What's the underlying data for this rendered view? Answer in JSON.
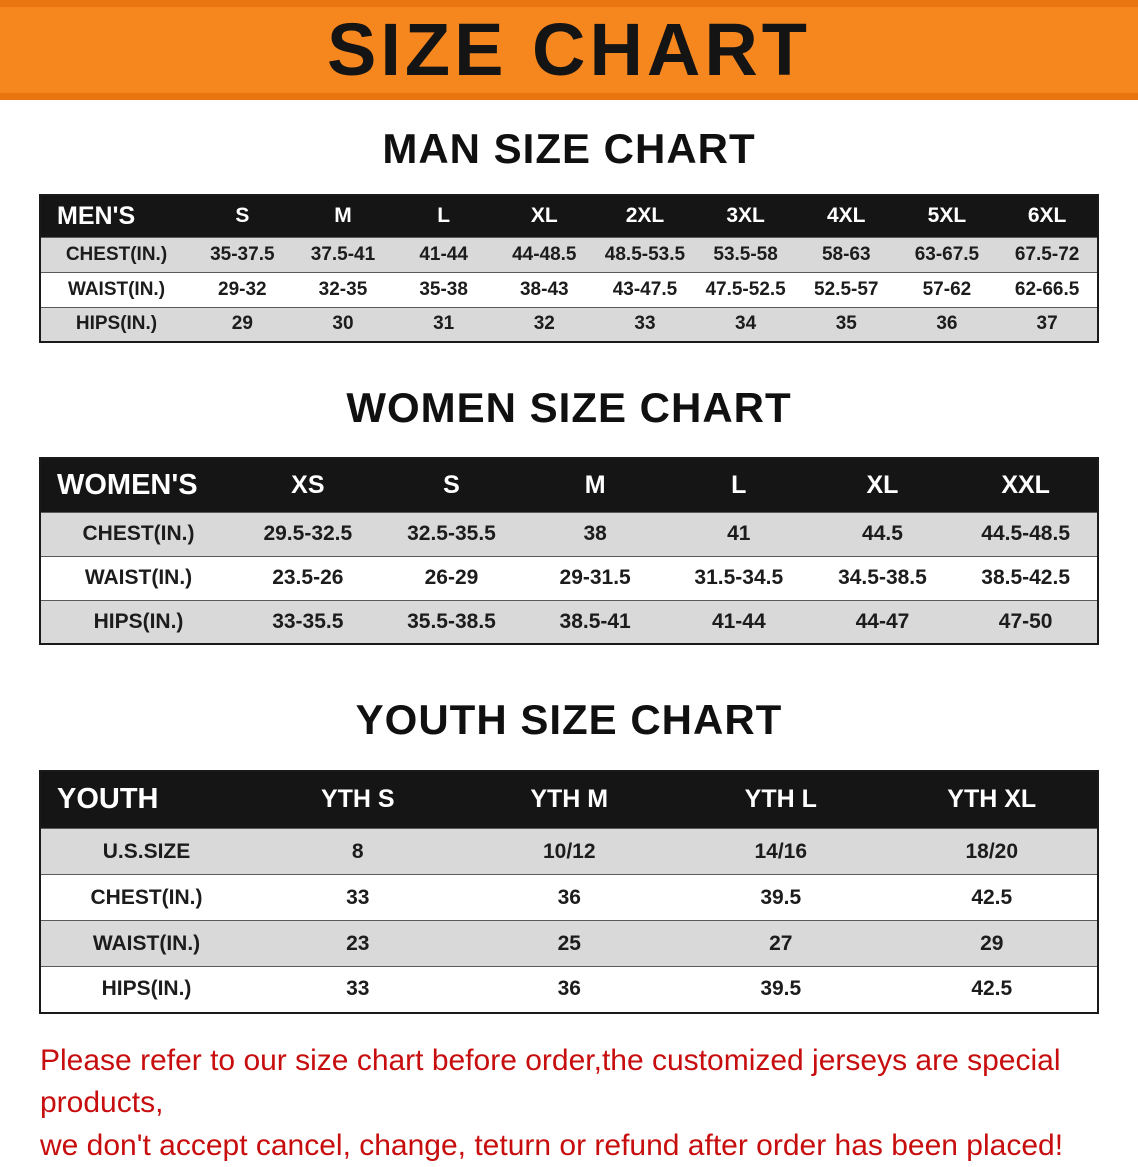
{
  "banner": {
    "title": "SIZE CHART"
  },
  "colors": {
    "banner_bg": "#f6871f",
    "banner_edge": "#e87510",
    "table_header_bg": "#151515",
    "row_stripe": "#d9d9d9",
    "disclaimer_red": "#c70d0d"
  },
  "sections": [
    {
      "id": "men",
      "heading": "MAN SIZE CHART",
      "table": {
        "header": [
          "MEN'S",
          "S",
          "M",
          "L",
          "XL",
          "2XL",
          "3XL",
          "4XL",
          "5XL",
          "6XL"
        ],
        "rows": [
          [
            "CHEST(IN.)",
            "35-37.5",
            "37.5-41",
            "41-44",
            "44-48.5",
            "48.5-53.5",
            "53.5-58",
            "58-63",
            "63-67.5",
            "67.5-72"
          ],
          [
            "WAIST(IN.)",
            "29-32",
            "32-35",
            "35-38",
            "38-43",
            "43-47.5",
            "47.5-52.5",
            "52.5-57",
            "57-62",
            "62-66.5"
          ],
          [
            "HIPS(IN.)",
            "29",
            "30",
            "31",
            "32",
            "33",
            "34",
            "35",
            "36",
            "37"
          ]
        ]
      }
    },
    {
      "id": "women",
      "heading": "WOMEN SIZE CHART",
      "table": {
        "header": [
          "WOMEN'S",
          "XS",
          "S",
          "M",
          "L",
          "XL",
          "XXL"
        ],
        "rows": [
          [
            "CHEST(IN.)",
            "29.5-32.5",
            "32.5-35.5",
            "38",
            "41",
            "44.5",
            "44.5-48.5"
          ],
          [
            "WAIST(IN.)",
            "23.5-26",
            "26-29",
            "29-31.5",
            "31.5-34.5",
            "34.5-38.5",
            "38.5-42.5"
          ],
          [
            "HIPS(IN.)",
            "33-35.5",
            "35.5-38.5",
            "38.5-41",
            "41-44",
            "44-47",
            "47-50"
          ]
        ]
      }
    },
    {
      "id": "youth",
      "heading": "YOUTH SIZE CHART",
      "table": {
        "header": [
          "YOUTH",
          "YTH S",
          "YTH M",
          "YTH L",
          "YTH XL"
        ],
        "rows": [
          [
            "U.S.SIZE",
            "8",
            "10/12",
            "14/16",
            "18/20"
          ],
          [
            "CHEST(IN.)",
            "33",
            "36",
            "39.5",
            "42.5"
          ],
          [
            "WAIST(IN.)",
            "23",
            "25",
            "27",
            "29"
          ],
          [
            "HIPS(IN.)",
            "33",
            "36",
            "39.5",
            "42.5"
          ]
        ]
      }
    }
  ],
  "disclaimer": {
    "lines": [
      "Please refer to our size chart before order,the customized jerseys are special products,",
      "we don't accept cancel, change, teturn or refund after order has been placed!"
    ]
  }
}
